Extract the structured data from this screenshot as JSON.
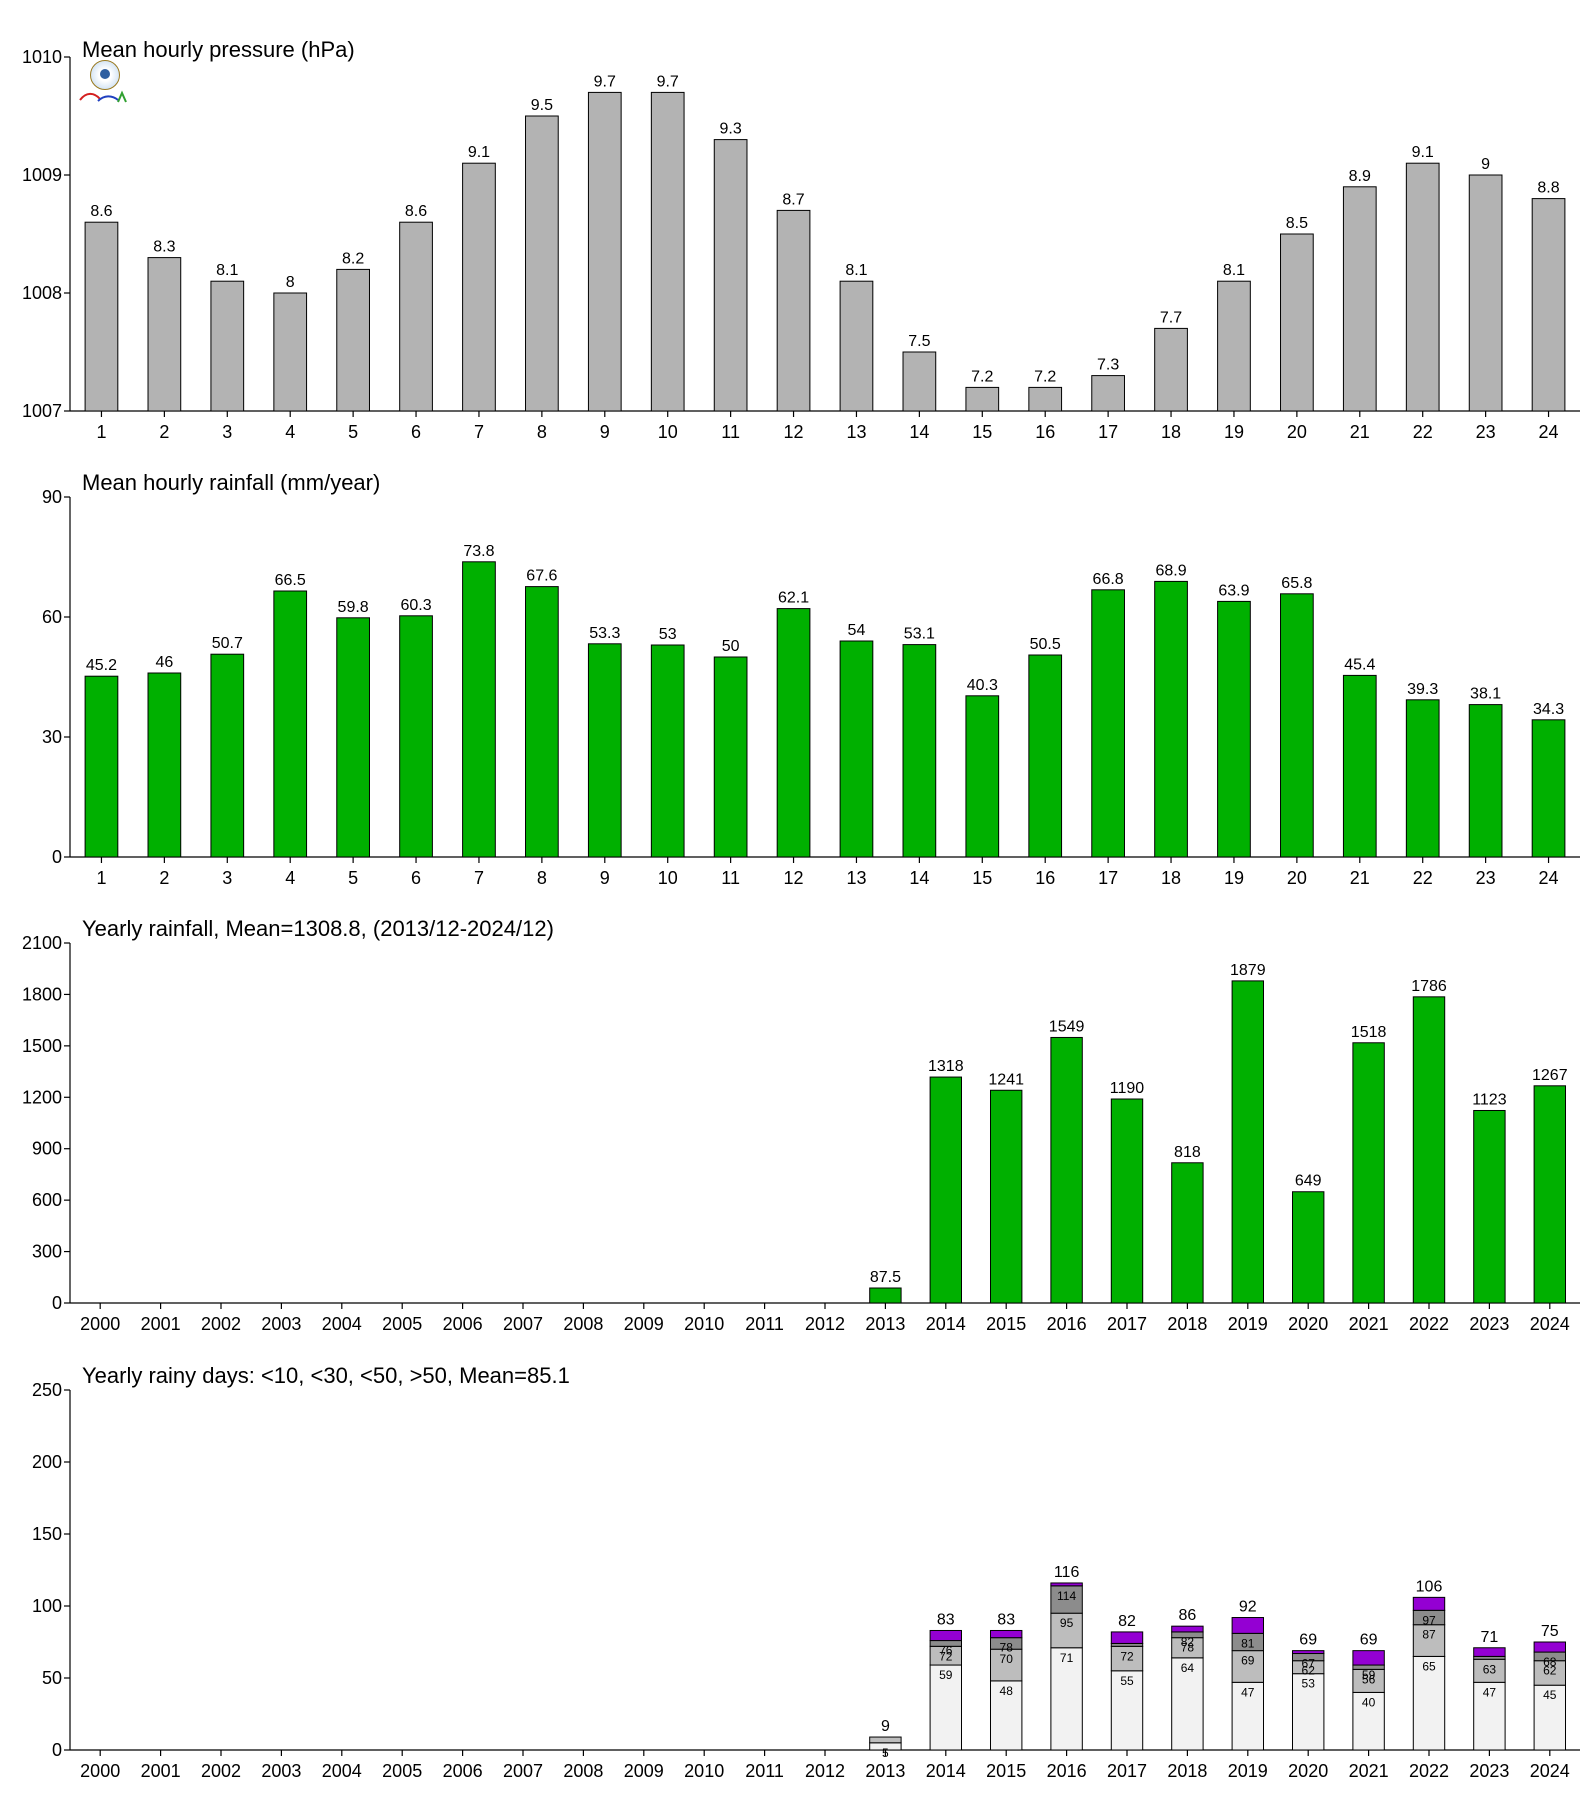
{
  "chart_data": [
    {
      "type": "bar",
      "title": "Mean hourly pressure (hPa)",
      "categories": [
        "1",
        "2",
        "3",
        "4",
        "5",
        "6",
        "7",
        "8",
        "9",
        "10",
        "11",
        "12",
        "13",
        "14",
        "15",
        "16",
        "17",
        "18",
        "19",
        "20",
        "21",
        "22",
        "23",
        "24"
      ],
      "values": [
        1008.6,
        1008.3,
        1008.1,
        1008.0,
        1008.2,
        1008.6,
        1009.1,
        1009.5,
        1009.7,
        1009.7,
        1009.3,
        1008.7,
        1008.1,
        1007.5,
        1007.2,
        1007.2,
        1007.3,
        1007.7,
        1008.1,
        1008.5,
        1008.9,
        1009.1,
        1009.0,
        1008.8
      ],
      "labels": [
        "8.6",
        "8.3",
        "8.1",
        "8",
        "8.2",
        "8.6",
        "9.1",
        "9.5",
        "9.7",
        "9.7",
        "9.3",
        "8.7",
        "8.1",
        "7.5",
        "7.2",
        "7.2",
        "7.3",
        "7.7",
        "8.1",
        "8.5",
        "8.9",
        "9.1",
        "9",
        "8.8"
      ],
      "ylim": [
        1007,
        1010
      ],
      "yticks": [
        1007,
        1008,
        1009,
        1010
      ],
      "color": "#b3b3b3",
      "grid": false
    },
    {
      "type": "bar",
      "title": "Mean hourly rainfall (mm/year)",
      "categories": [
        "1",
        "2",
        "3",
        "4",
        "5",
        "6",
        "7",
        "8",
        "9",
        "10",
        "11",
        "12",
        "13",
        "14",
        "15",
        "16",
        "17",
        "18",
        "19",
        "20",
        "21",
        "22",
        "23",
        "24"
      ],
      "values": [
        45.2,
        46,
        50.7,
        66.5,
        59.8,
        60.3,
        73.8,
        67.6,
        53.3,
        53,
        50,
        62.1,
        54,
        53.1,
        40.3,
        50.5,
        66.8,
        68.9,
        63.9,
        65.8,
        45.4,
        39.3,
        38.1,
        34.3
      ],
      "labels": [
        "45.2",
        "46",
        "50.7",
        "66.5",
        "59.8",
        "60.3",
        "73.8",
        "67.6",
        "53.3",
        "53",
        "50",
        "62.1",
        "54",
        "53.1",
        "40.3",
        "50.5",
        "66.8",
        "68.9",
        "63.9",
        "65.8",
        "45.4",
        "39.3",
        "38.1",
        "34.3"
      ],
      "ylim": [
        0,
        90
      ],
      "yticks": [
        0,
        30,
        60,
        90
      ],
      "color": "#00b000",
      "grid": false
    },
    {
      "type": "bar",
      "title": "Yearly rainfall, Mean=1308.8, (2013/12-2024/12)",
      "categories": [
        "2000",
        "2001",
        "2002",
        "2003",
        "2004",
        "2005",
        "2006",
        "2007",
        "2008",
        "2009",
        "2010",
        "2011",
        "2012",
        "2013",
        "2014",
        "2015",
        "2016",
        "2017",
        "2018",
        "2019",
        "2020",
        "2021",
        "2022",
        "2023",
        "2024"
      ],
      "values": [
        null,
        null,
        null,
        null,
        null,
        null,
        null,
        null,
        null,
        null,
        null,
        null,
        null,
        87.5,
        1318,
        1241,
        1549,
        1190,
        818,
        1879,
        649,
        1518,
        1786,
        1123,
        1267
      ],
      "labels": [
        "",
        "",
        "",
        "",
        "",
        "",
        "",
        "",
        "",
        "",
        "",
        "",
        "",
        "87.5",
        "1318",
        "1241",
        "1549",
        "1190",
        "818",
        "1879",
        "649",
        "1518",
        "1786",
        "1123",
        "1267"
      ],
      "ylim": [
        0,
        2100
      ],
      "yticks": [
        0,
        300,
        600,
        900,
        1200,
        1500,
        1800,
        2100
      ],
      "color": "#00b000",
      "grid": false
    },
    {
      "type": "bar",
      "stacked": true,
      "title": "Yearly rainy days: <10, <30, <50, >50, Mean=85.1",
      "categories": [
        "2000",
        "2001",
        "2002",
        "2003",
        "2004",
        "2005",
        "2006",
        "2007",
        "2008",
        "2009",
        "2010",
        "2011",
        "2012",
        "2013",
        "2014",
        "2015",
        "2016",
        "2017",
        "2018",
        "2019",
        "2020",
        "2021",
        "2022",
        "2023",
        "2024"
      ],
      "cumulative": [
        null,
        null,
        null,
        null,
        null,
        null,
        null,
        null,
        null,
        null,
        null,
        null,
        null,
        [
          5,
          9,
          9,
          9
        ],
        [
          59,
          72,
          76,
          83
        ],
        [
          48,
          70,
          78,
          83
        ],
        [
          71,
          95,
          114,
          116
        ],
        [
          55,
          72,
          74,
          82
        ],
        [
          64,
          78,
          82,
          86
        ],
        [
          47,
          69,
          81,
          92
        ],
        [
          53,
          62,
          67,
          69
        ],
        [
          40,
          56,
          59,
          69
        ],
        [
          65,
          87,
          97,
          106
        ],
        [
          47,
          63,
          65,
          71
        ],
        [
          45,
          62,
          68,
          75
        ]
      ],
      "segment_labels": [
        null,
        null,
        null,
        null,
        null,
        null,
        null,
        null,
        null,
        null,
        null,
        null,
        null,
        [
          "5",
          "",
          "",
          ""
        ],
        [
          "59",
          "72",
          "76",
          ""
        ],
        [
          "48",
          "70",
          "78",
          ""
        ],
        [
          "71",
          "95",
          "114",
          ""
        ],
        [
          "55",
          "72",
          "",
          ""
        ],
        [
          "64",
          "78",
          "82",
          ""
        ],
        [
          "47",
          "69",
          "81",
          ""
        ],
        [
          "53",
          "62",
          "67",
          ""
        ],
        [
          "40",
          "56",
          "59",
          ""
        ],
        [
          "65",
          "87",
          "97",
          ""
        ],
        [
          "47",
          "63",
          "",
          ""
        ],
        [
          "45",
          "62",
          "68",
          ""
        ]
      ],
      "totals": [
        "",
        "",
        "",
        "",
        "",
        "",
        "",
        "",
        "",
        "",
        "",
        "",
        "",
        "9",
        "83",
        "83",
        "116",
        "82",
        "86",
        "92",
        "69",
        "69",
        "106",
        "71",
        "75"
      ],
      "series_colors": [
        "#f2f2f2",
        "#bdbdbd",
        "#8c8c8c",
        "#9400d3"
      ],
      "ylim": [
        0,
        250
      ],
      "yticks": [
        0,
        50,
        100,
        150,
        200,
        250
      ],
      "grid": false
    }
  ]
}
